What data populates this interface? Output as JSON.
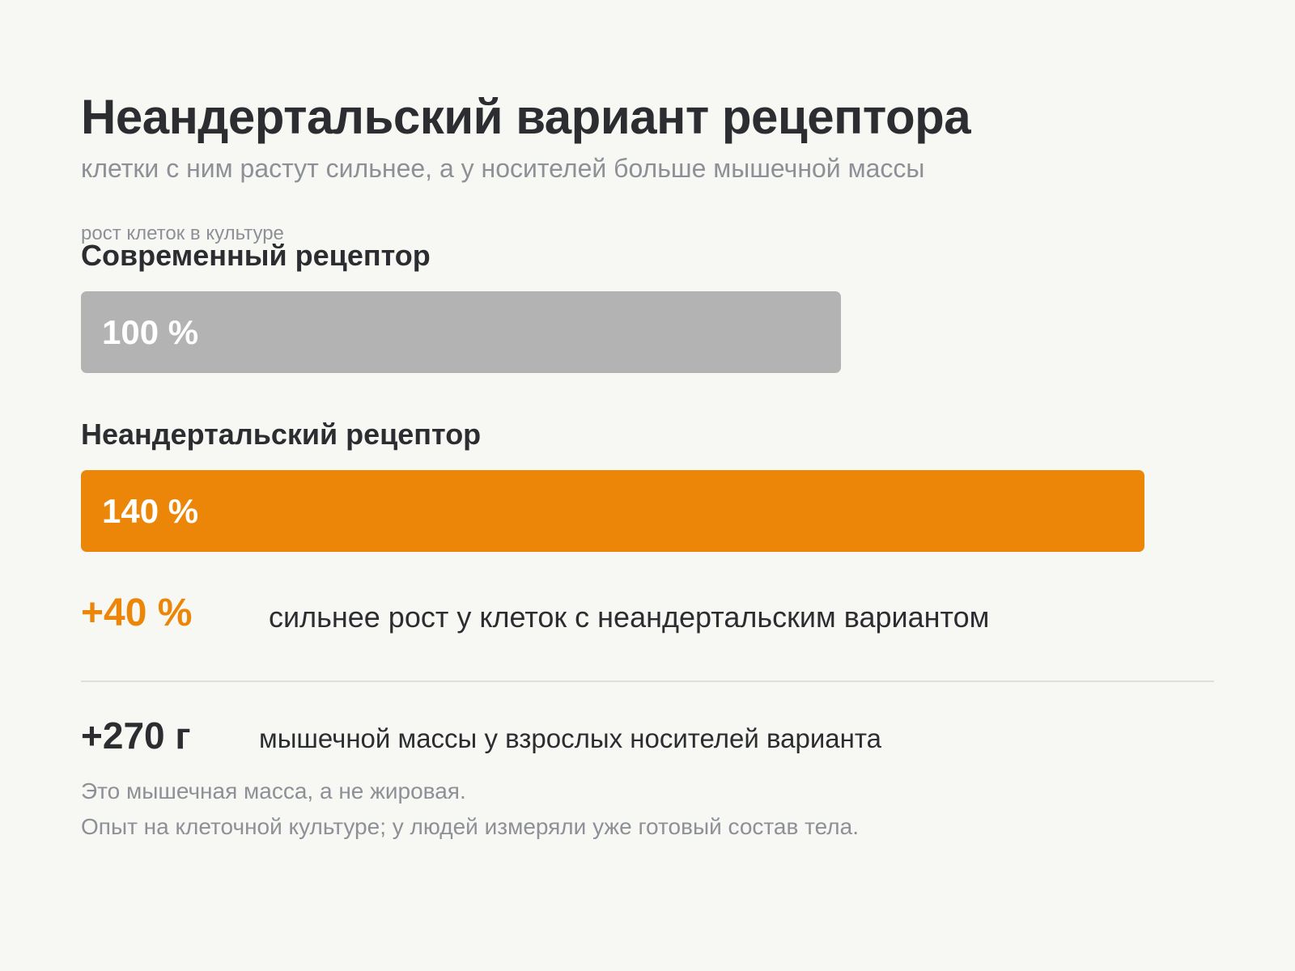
{
  "header": {
    "title": "Неандертальский вариант рецептора",
    "subtitle": "клетки с ним растут сильнее, а у носителей больше мышечной массы"
  },
  "colors": {
    "background": "#f7f8f4",
    "modern_bar": "#b3b3b3",
    "neanderthal_bar": "#ec8609",
    "accent": "#ec8609",
    "text_dark": "#2b2d31",
    "text_muted": "#8d9096"
  },
  "chart_data": {
    "type": "bar",
    "orientation": "horizontal",
    "title": "рост клеток в культуре",
    "categories": [
      "Современный рецептор",
      "Неандертальский рецептор"
    ],
    "values": [
      100,
      140
    ],
    "value_labels": [
      "100 %",
      "140 %"
    ],
    "unit": "%",
    "colors": [
      "#b3b3b3",
      "#ec8609"
    ],
    "xlim": [
      0,
      150
    ],
    "grid": false,
    "legend": "none"
  },
  "stats": {
    "growth": {
      "value": "+40 %",
      "text": "сильнее рост у клеток с неандертальским вариантом"
    },
    "muscle": {
      "value": "+270 г",
      "text": "мышечной массы у взрослых носителей варианта"
    }
  },
  "notes": [
    "Это мышечная масса, а не жировая.",
    "Опыт на клеточной культуре; у людей измеряли уже готовый состав тела."
  ]
}
